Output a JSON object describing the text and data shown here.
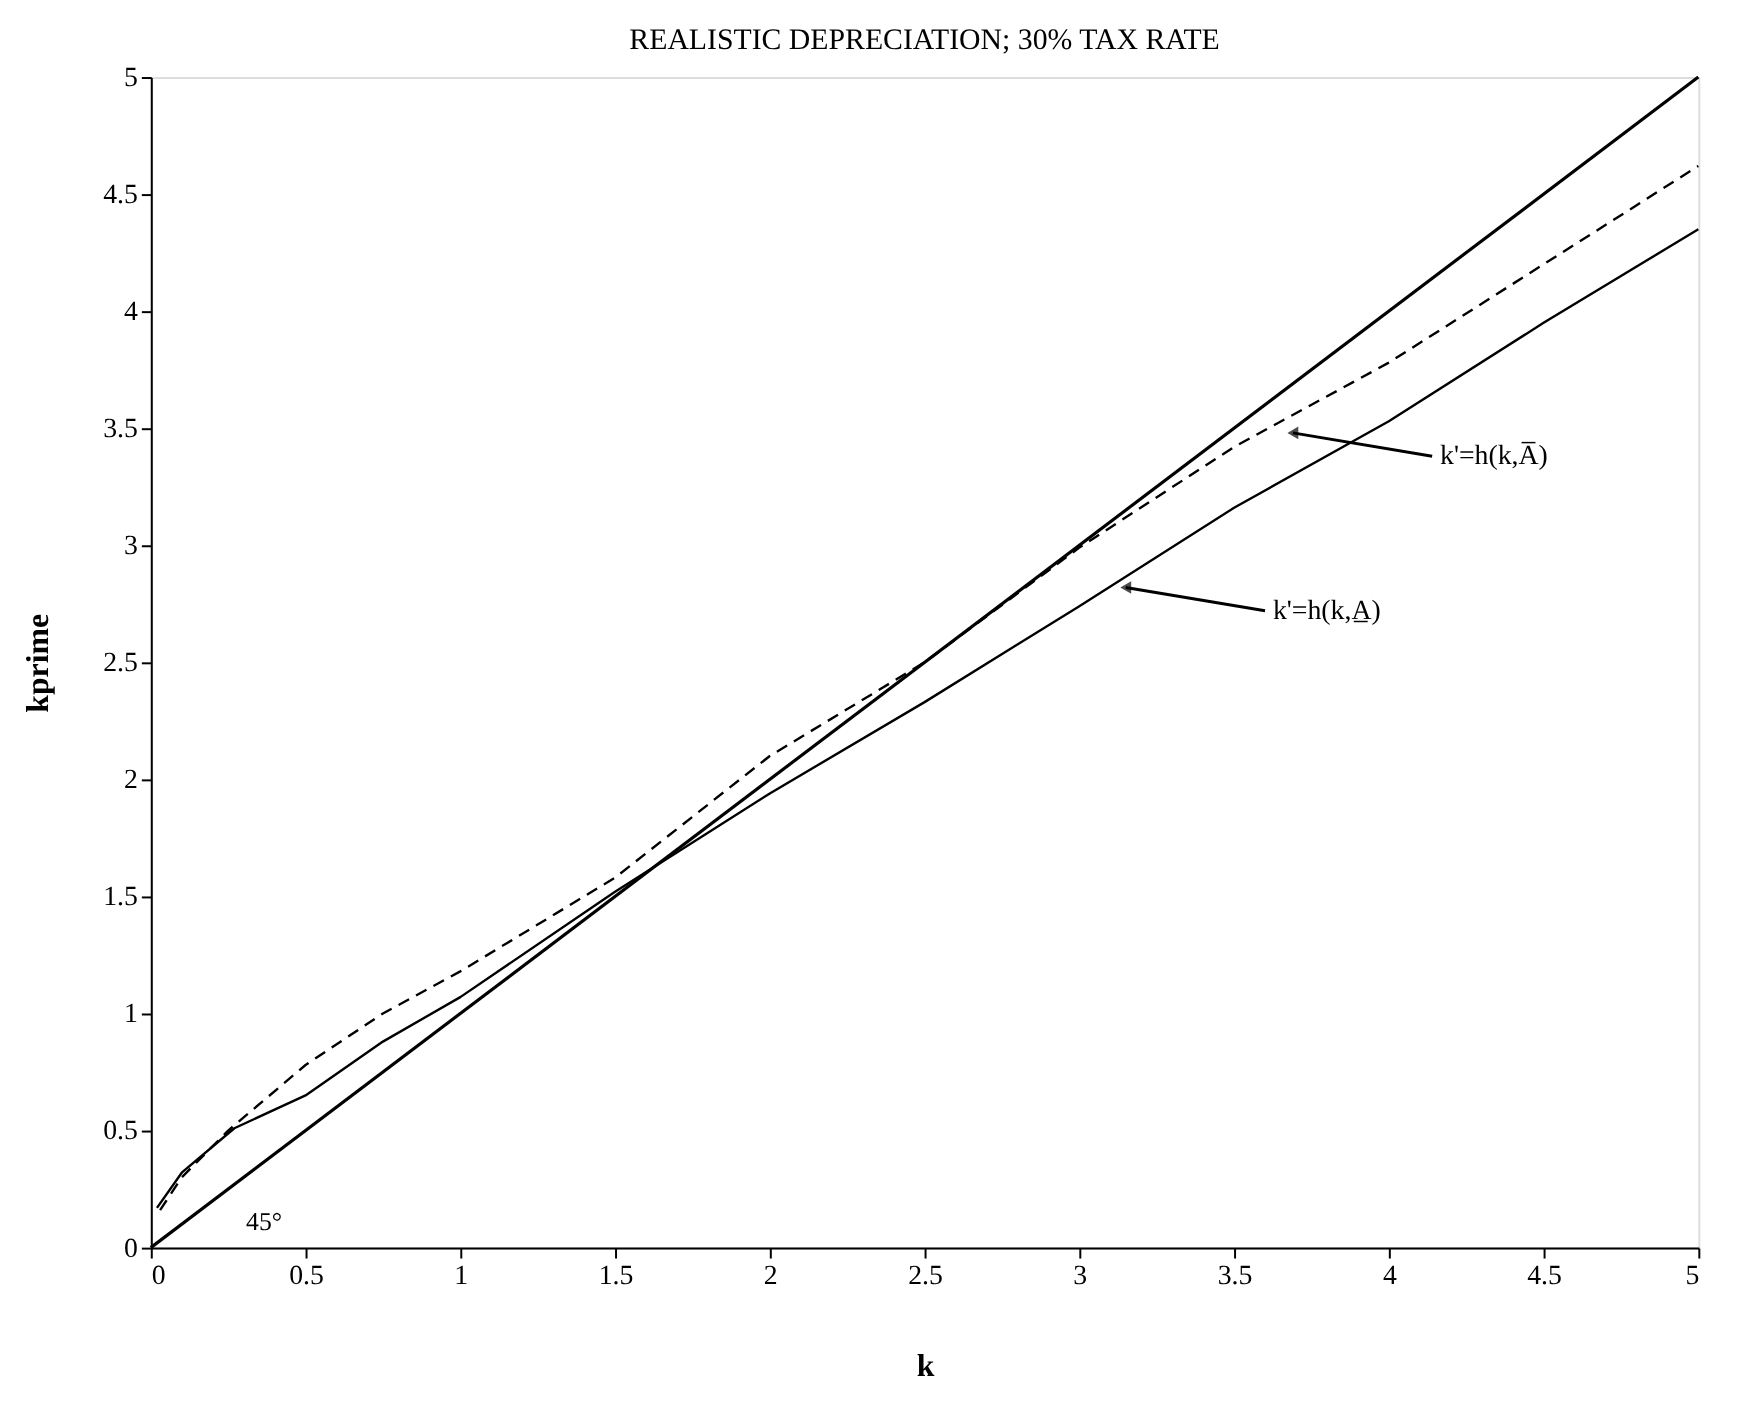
{
  "chart_data": {
    "type": "line",
    "title": "REALISTIC DEPRECIATION; 30% TAX RATE",
    "xlabel": "k",
    "ylabel": "kprime",
    "xlim": [
      0,
      5
    ],
    "ylim": [
      0,
      5
    ],
    "xticks": [
      0,
      0.5,
      1,
      1.5,
      2,
      2.5,
      3,
      3.5,
      4,
      4.5,
      5
    ],
    "yticks": [
      0,
      0.5,
      1,
      1.5,
      2,
      2.5,
      3,
      3.5,
      4,
      4.5,
      5
    ],
    "grid": false,
    "series": [
      {
        "color": "#000000",
        "line_style": "solid",
        "x": [
          0,
          5
        ],
        "values": [
          0,
          5
        ]
      },
      {
        "color": "#000000",
        "line_style": "dashed",
        "x": [
          0.03,
          0.1,
          0.25,
          0.5,
          0.75,
          1,
          1.5,
          2,
          2.5,
          3,
          3.5,
          4,
          4.5,
          5
        ],
        "values": [
          0.16,
          0.3,
          0.5,
          0.78,
          1.0,
          1.18,
          1.58,
          2.1,
          2.5,
          2.99,
          3.42,
          3.78,
          4.2,
          4.62
        ]
      },
      {
        "color": "#000000",
        "line_style": "solid",
        "x": [
          0.02,
          0.1,
          0.27,
          0.5,
          0.75,
          1,
          1.5,
          2,
          2.5,
          3,
          3.5,
          4,
          4.5,
          5
        ],
        "values": [
          0.17,
          0.32,
          0.51,
          0.65,
          0.88,
          1.07,
          1.52,
          1.94,
          2.33,
          2.74,
          3.16,
          3.53,
          3.95,
          4.35
        ]
      }
    ],
    "annotations": [
      {
        "text": "k'=h(k,A̅)",
        "x": 3.69,
        "y": 3.48
      },
      {
        "text": "k'=h(k,A̲)",
        "x": 3.15,
        "y": 2.82
      },
      "45°"
    ]
  }
}
